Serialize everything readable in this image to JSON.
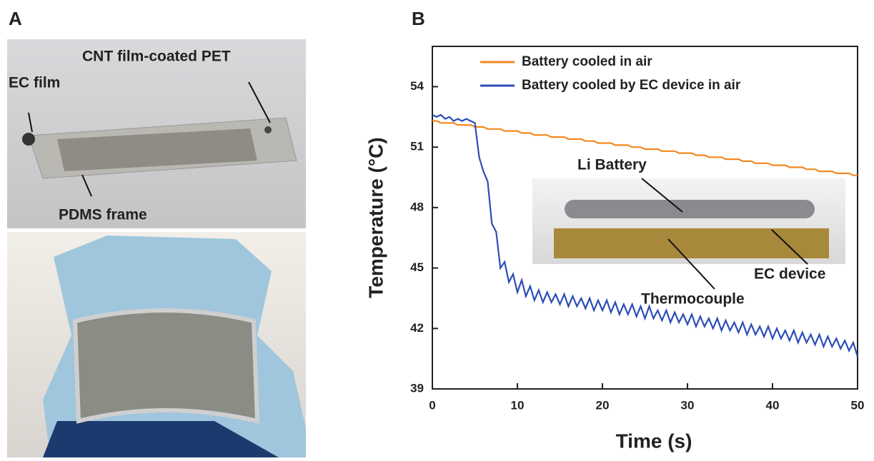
{
  "panel_labels": [
    "A",
    "B"
  ],
  "photo_labels": {
    "ec_film": "EC film",
    "cnt": "CNT film-coated PET",
    "pdms": "PDMS frame"
  },
  "chart_data": {
    "type": "line",
    "xlabel": "Time (s)",
    "ylabel": "Temperature (°C)",
    "annotations": [
      "Li Battery",
      "EC device",
      "Thermocouple"
    ],
    "legend": "upper left",
    "xlim": [
      0,
      50
    ],
    "xticks": [
      0,
      10,
      20,
      30,
      40,
      50
    ],
    "ylim": [
      39,
      56
    ],
    "yticks": [
      39,
      42,
      45,
      48,
      51,
      54
    ],
    "x": [
      0,
      0.5,
      1,
      1.5,
      2,
      2.5,
      3,
      3.5,
      4,
      4.5,
      5,
      5.5,
      6,
      6.5,
      7,
      7.5,
      8,
      8.5,
      9,
      9.5,
      10,
      10.5,
      11,
      11.5,
      12,
      12.5,
      13,
      13.5,
      14,
      14.5,
      15,
      15.5,
      16,
      16.5,
      17,
      17.5,
      18,
      18.5,
      19,
      19.5,
      20,
      20.5,
      21,
      21.5,
      22,
      22.5,
      23,
      23.5,
      24,
      24.5,
      25,
      25.5,
      26,
      26.5,
      27,
      27.5,
      28,
      28.5,
      29,
      29.5,
      30,
      30.5,
      31,
      31.5,
      32,
      32.5,
      33,
      33.5,
      34,
      34.5,
      35,
      35.5,
      36,
      36.5,
      37,
      37.5,
      38,
      38.5,
      39,
      39.5,
      40,
      40.5,
      41,
      41.5,
      42,
      42.5,
      43,
      43.5,
      44,
      44.5,
      45,
      45.5,
      46,
      46.5,
      47,
      47.5,
      48,
      48.5,
      49,
      49.5,
      50
    ],
    "series": [
      {
        "name": "Battery cooled in air",
        "color": "#f28a22",
        "values": [
          52.3,
          52.3,
          52.2,
          52.2,
          52.2,
          52.2,
          52.1,
          52.1,
          52.1,
          52.1,
          52.0,
          52.0,
          52.0,
          51.9,
          51.9,
          51.9,
          51.9,
          51.8,
          51.8,
          51.8,
          51.8,
          51.7,
          51.7,
          51.7,
          51.6,
          51.6,
          51.6,
          51.6,
          51.5,
          51.5,
          51.5,
          51.5,
          51.4,
          51.4,
          51.4,
          51.4,
          51.3,
          51.3,
          51.3,
          51.2,
          51.2,
          51.2,
          51.2,
          51.1,
          51.1,
          51.1,
          51.1,
          51.0,
          51.0,
          51.0,
          50.9,
          50.9,
          50.9,
          50.9,
          50.8,
          50.8,
          50.8,
          50.8,
          50.7,
          50.7,
          50.7,
          50.7,
          50.6,
          50.6,
          50.6,
          50.5,
          50.5,
          50.5,
          50.5,
          50.4,
          50.4,
          50.4,
          50.4,
          50.3,
          50.3,
          50.3,
          50.2,
          50.2,
          50.2,
          50.2,
          50.1,
          50.1,
          50.1,
          50.1,
          50.0,
          50.0,
          50.0,
          50.0,
          49.9,
          49.9,
          49.9,
          49.8,
          49.8,
          49.8,
          49.8,
          49.7,
          49.7,
          49.7,
          49.7,
          49.6,
          49.6
        ]
      },
      {
        "name": "Battery cooled by EC device in air",
        "color": "#2c4db8",
        "values": [
          52.6,
          52.5,
          52.6,
          52.4,
          52.5,
          52.3,
          52.4,
          52.3,
          52.4,
          52.3,
          52.2,
          50.5,
          49.8,
          49.3,
          47.2,
          46.8,
          45.0,
          45.3,
          44.3,
          44.7,
          43.8,
          44.4,
          43.6,
          44.1,
          43.4,
          43.9,
          43.3,
          43.8,
          43.3,
          43.7,
          43.2,
          43.7,
          43.1,
          43.6,
          43.1,
          43.5,
          43.0,
          43.5,
          42.9,
          43.4,
          42.9,
          43.4,
          42.8,
          43.3,
          42.7,
          43.2,
          42.7,
          43.2,
          42.6,
          43.1,
          42.5,
          43.1,
          42.5,
          42.9,
          42.4,
          42.9,
          42.3,
          42.8,
          42.3,
          42.7,
          42.2,
          42.7,
          42.1,
          42.6,
          42.1,
          42.5,
          42.0,
          42.5,
          41.9,
          42.4,
          41.9,
          42.3,
          41.8,
          42.3,
          41.7,
          42.2,
          41.7,
          42.1,
          41.6,
          42.1,
          41.5,
          42.0,
          41.5,
          41.9,
          41.4,
          41.9,
          41.3,
          41.8,
          41.3,
          41.7,
          41.2,
          41.7,
          41.1,
          41.6,
          41.1,
          41.5,
          41.0,
          41.4,
          40.9,
          41.3,
          40.6
        ]
      }
    ]
  }
}
